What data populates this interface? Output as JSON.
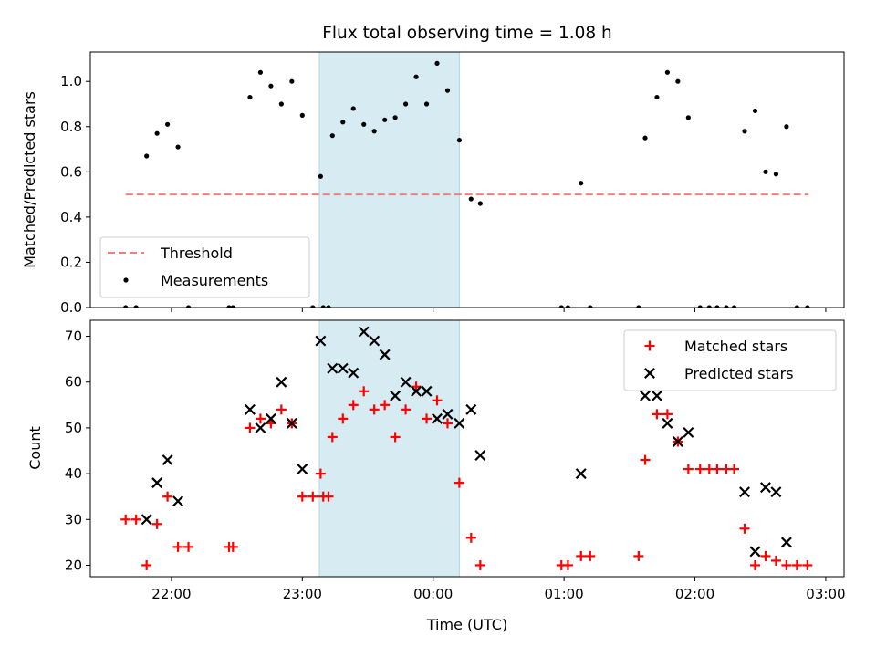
{
  "chart_data": {
    "type": "scatter",
    "title": "Flux total observing time = 1.08 h",
    "xlabel": "Time (UTC)",
    "x_tick_labels": [
      "22:00",
      "23:00",
      "00:00",
      "01:00",
      "02:00",
      "03:00"
    ],
    "x_tick_hours": [
      22,
      23,
      24,
      25,
      26,
      27
    ],
    "xlim_hours": [
      21.38,
      27.14
    ],
    "highlight_span_hours": [
      23.13,
      24.2
    ],
    "highlight_color": "#add8e6",
    "panels": [
      {
        "id": "ratio",
        "ylabel": "Matched/Predicted stars",
        "ylim": [
          0,
          1.13
        ],
        "y_ticks": [
          0.0,
          0.2,
          0.4,
          0.6,
          0.8,
          1.0
        ],
        "y_tick_labels": [
          "0.0",
          "0.2",
          "0.4",
          "0.6",
          "0.8",
          "1.0"
        ],
        "legend_position": "lower-left",
        "threshold": {
          "name": "Threshold",
          "value": 0.5,
          "x_range_hours": [
            21.65,
            26.87
          ],
          "color": "#f08080",
          "style": "dashed"
        },
        "series": [
          {
            "name": "Measurements",
            "marker": "dot",
            "color": "#000000",
            "points": [
              [
                21.65,
                0
              ],
              [
                21.73,
                0
              ],
              [
                21.81,
                0.67
              ],
              [
                21.89,
                0.77
              ],
              [
                21.97,
                0.81
              ],
              [
                22.05,
                0.71
              ],
              [
                22.13,
                0
              ],
              [
                22.44,
                0
              ],
              [
                22.47,
                0
              ],
              [
                22.6,
                0.93
              ],
              [
                22.68,
                1.04
              ],
              [
                22.76,
                0.98
              ],
              [
                22.84,
                0.9
              ],
              [
                22.92,
                1.0
              ],
              [
                23.0,
                0.85
              ],
              [
                23.08,
                0
              ],
              [
                23.16,
                0
              ],
              [
                23.2,
                0
              ],
              [
                23.14,
                0.58
              ],
              [
                23.23,
                0.76
              ],
              [
                23.31,
                0.82
              ],
              [
                23.39,
                0.88
              ],
              [
                23.47,
                0.81
              ],
              [
                23.55,
                0.78
              ],
              [
                23.63,
                0.83
              ],
              [
                23.71,
                0.84
              ],
              [
                23.79,
                0.9
              ],
              [
                23.87,
                1.02
              ],
              [
                23.95,
                0.9
              ],
              [
                24.03,
                1.08
              ],
              [
                24.11,
                0.96
              ],
              [
                24.2,
                0.74
              ],
              [
                24.29,
                0.48
              ],
              [
                24.36,
                0.46
              ],
              [
                24.98,
                0
              ],
              [
                25.03,
                0
              ],
              [
                25.13,
                0.55
              ],
              [
                25.2,
                0
              ],
              [
                25.57,
                0
              ],
              [
                25.62,
                0.75
              ],
              [
                25.71,
                0.93
              ],
              [
                25.79,
                1.04
              ],
              [
                25.87,
                1.0
              ],
              [
                25.95,
                0.84
              ],
              [
                26.04,
                0
              ],
              [
                26.11,
                0
              ],
              [
                26.17,
                0
              ],
              [
                26.24,
                0
              ],
              [
                26.3,
                0
              ],
              [
                26.38,
                0.78
              ],
              [
                26.46,
                0.87
              ],
              [
                26.54,
                0.6
              ],
              [
                26.62,
                0.59
              ],
              [
                26.7,
                0.8
              ],
              [
                26.78,
                0
              ],
              [
                26.86,
                0
              ]
            ]
          }
        ]
      },
      {
        "id": "counts",
        "ylabel": "Count",
        "ylim": [
          17.5,
          73.5
        ],
        "y_ticks": [
          20,
          30,
          40,
          50,
          60,
          70
        ],
        "y_tick_labels": [
          "20",
          "30",
          "40",
          "50",
          "60",
          "70"
        ],
        "legend_position": "top-right",
        "series": [
          {
            "name": "Matched stars",
            "marker": "plus",
            "color": "#ff0000",
            "points": [
              [
                21.65,
                30
              ],
              [
                21.73,
                30
              ],
              [
                21.81,
                20
              ],
              [
                21.89,
                29
              ],
              [
                21.97,
                35
              ],
              [
                22.05,
                24
              ],
              [
                22.13,
                24
              ],
              [
                22.44,
                24
              ],
              [
                22.47,
                24
              ],
              [
                22.6,
                50
              ],
              [
                22.68,
                52
              ],
              [
                22.76,
                51
              ],
              [
                22.84,
                54
              ],
              [
                22.92,
                51
              ],
              [
                23.0,
                35
              ],
              [
                23.08,
                35
              ],
              [
                23.16,
                35
              ],
              [
                23.2,
                35
              ],
              [
                23.14,
                40
              ],
              [
                23.23,
                48
              ],
              [
                23.31,
                52
              ],
              [
                23.39,
                55
              ],
              [
                23.47,
                58
              ],
              [
                23.55,
                54
              ],
              [
                23.63,
                55
              ],
              [
                23.71,
                48
              ],
              [
                23.79,
                54
              ],
              [
                23.87,
                59
              ],
              [
                23.95,
                52
              ],
              [
                24.03,
                56
              ],
              [
                24.11,
                51
              ],
              [
                24.2,
                38
              ],
              [
                24.29,
                26
              ],
              [
                24.36,
                20
              ],
              [
                24.98,
                20
              ],
              [
                25.03,
                20
              ],
              [
                25.13,
                22
              ],
              [
                25.2,
                22
              ],
              [
                25.57,
                22
              ],
              [
                25.62,
                43
              ],
              [
                25.71,
                53
              ],
              [
                25.79,
                53
              ],
              [
                25.87,
                47
              ],
              [
                25.95,
                41
              ],
              [
                26.04,
                41
              ],
              [
                26.11,
                41
              ],
              [
                26.17,
                41
              ],
              [
                26.24,
                41
              ],
              [
                26.3,
                41
              ],
              [
                26.38,
                28
              ],
              [
                26.46,
                20
              ],
              [
                26.54,
                22
              ],
              [
                26.62,
                21
              ],
              [
                26.7,
                20
              ],
              [
                26.78,
                20
              ],
              [
                26.86,
                20
              ]
            ]
          },
          {
            "name": "Predicted stars",
            "marker": "x",
            "color": "#000000",
            "points": [
              [
                21.81,
                30
              ],
              [
                21.89,
                38
              ],
              [
                21.97,
                43
              ],
              [
                22.05,
                34
              ],
              [
                22.6,
                54
              ],
              [
                22.68,
                50
              ],
              [
                22.76,
                52
              ],
              [
                22.84,
                60
              ],
              [
                22.92,
                51
              ],
              [
                23.0,
                41
              ],
              [
                23.14,
                69
              ],
              [
                23.23,
                63
              ],
              [
                23.31,
                63
              ],
              [
                23.39,
                62
              ],
              [
                23.47,
                71
              ],
              [
                23.55,
                69
              ],
              [
                23.63,
                66
              ],
              [
                23.71,
                57
              ],
              [
                23.79,
                60
              ],
              [
                23.87,
                58
              ],
              [
                23.95,
                58
              ],
              [
                24.03,
                52
              ],
              [
                24.11,
                53
              ],
              [
                24.2,
                51
              ],
              [
                24.29,
                54
              ],
              [
                24.36,
                44
              ],
              [
                25.13,
                40
              ],
              [
                25.62,
                57
              ],
              [
                25.71,
                57
              ],
              [
                25.79,
                51
              ],
              [
                25.87,
                47
              ],
              [
                25.95,
                49
              ],
              [
                26.38,
                36
              ],
              [
                26.46,
                23
              ],
              [
                26.54,
                37
              ],
              [
                26.62,
                36
              ],
              [
                26.7,
                25
              ]
            ]
          }
        ]
      }
    ]
  }
}
